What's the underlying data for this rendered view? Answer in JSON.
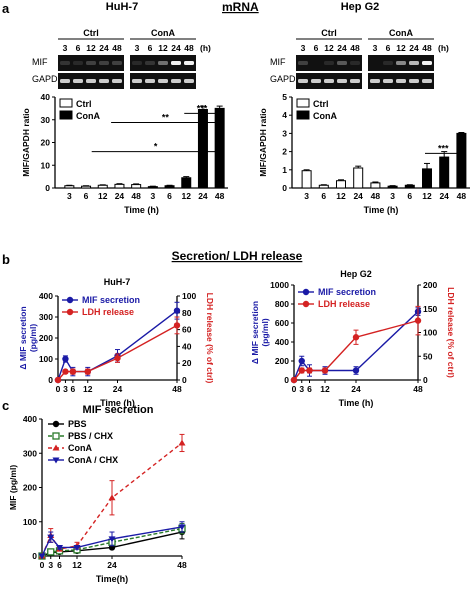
{
  "panel_a": {
    "letter": "a",
    "title": "mRNA",
    "huh7": {
      "name": "HuH-7",
      "gel_group_ctrl": "Ctrl",
      "gel_group_cona": "ConA",
      "gel_times": [
        "3",
        "6",
        "12",
        "24",
        "48",
        "3",
        "6",
        "12",
        "24",
        "48"
      ],
      "gel_unit": "(h)",
      "row_mif": "MIF",
      "row_gapdh": "GAPDH"
    },
    "hepg2": {
      "name": "Hep G2",
      "gel_group_ctrl": "Ctrl",
      "gel_group_cona": "ConA",
      "gel_times": [
        "3",
        "6",
        "12",
        "24",
        "48",
        "3",
        "6",
        "12",
        "24",
        "48"
      ],
      "gel_unit": "(h)",
      "row_mif": "MIF",
      "row_gapdh": "GAPDH"
    }
  },
  "panel_b": {
    "letter": "b",
    "title": "Secretion/ LDH release"
  },
  "panel_c": {
    "letter": "c",
    "title": "MIF secretion"
  },
  "chart_data": [
    {
      "id": "huh7_bar",
      "type": "bar",
      "title": "",
      "ylabel": "MIF/GAPDH ratio",
      "xlabel": "Time (h)",
      "ylim": [
        0,
        40
      ],
      "yticks": [
        "0",
        "10",
        "20",
        "30",
        "40"
      ],
      "categories": [
        "3",
        "6",
        "12",
        "24",
        "48"
      ],
      "series": [
        {
          "name": "Ctrl",
          "color": "#ffffff",
          "values": [
            1.0,
            0.8,
            1.2,
            1.6,
            1.5
          ],
          "errors": [
            0.2,
            0.2,
            0.2,
            0.3,
            0.3
          ]
        },
        {
          "name": "ConA",
          "color": "#000000",
          "values": [
            0.6,
            1.0,
            4.5,
            34.5,
            35.0
          ],
          "errors": [
            0.2,
            0.2,
            0.5,
            1.5,
            1.0
          ]
        }
      ],
      "annotations": [
        {
          "label": "*",
          "from_cat": 1,
          "to_cat": 4
        },
        {
          "label": "**",
          "from_cat": 1,
          "to_cat": 4
        },
        {
          "label": "***",
          "from_cat": 2,
          "to_cat": 4
        }
      ]
    },
    {
      "id": "hepg2_bar",
      "type": "bar",
      "title": "",
      "ylabel": "MIF/GAPDH ratio",
      "xlabel": "Time (h)",
      "ylim": [
        0,
        5
      ],
      "yticks": [
        "0",
        "1",
        "2",
        "3",
        "4",
        "5"
      ],
      "categories": [
        "3",
        "6",
        "12",
        "24",
        "48"
      ],
      "series": [
        {
          "name": "Ctrl",
          "color": "#ffffff",
          "values": [
            0.95,
            0.15,
            0.4,
            1.1,
            0.28
          ],
          "errors": [
            0.05,
            0.03,
            0.05,
            0.1,
            0.05
          ]
        },
        {
          "name": "ConA",
          "color": "#000000",
          "values": [
            0.1,
            0.15,
            1.05,
            1.7,
            3.0
          ],
          "errors": [
            0.03,
            0.03,
            0.3,
            0.3,
            0.05
          ]
        }
      ],
      "annotations": [
        {
          "label": "***",
          "from_cat": 2,
          "to_cat": 4
        }
      ]
    },
    {
      "id": "huh7_line",
      "type": "line",
      "title": "HuH-7",
      "xlabel": "Time (h)",
      "ylabel": "Δ MIF secretion (pg/ml)",
      "y2label": "LDH release (% of ctrl)",
      "xticks": [
        "0",
        "3",
        "6",
        "12",
        "24",
        "48"
      ],
      "xlim": [
        0,
        48
      ],
      "ylim": [
        0,
        400
      ],
      "yticks": [
        "0",
        "100",
        "200",
        "300",
        "400"
      ],
      "y2lim": [
        0,
        100
      ],
      "y2ticks": [
        "0",
        "20",
        "40",
        "60",
        "80",
        "100"
      ],
      "series": [
        {
          "name": "MIF secretion",
          "color": "#1a1aa6",
          "axis": "left",
          "x": [
            0,
            3,
            6,
            12,
            24,
            48
          ],
          "y": [
            0,
            100,
            40,
            40,
            115,
            330
          ],
          "err": [
            0,
            15,
            20,
            20,
            30,
            40
          ]
        },
        {
          "name": "LDH release",
          "color": "#d42222",
          "axis": "right",
          "x": [
            0,
            3,
            6,
            12,
            24,
            48
          ],
          "y": [
            0,
            10,
            10,
            10,
            26,
            65
          ],
          "err": [
            0,
            2,
            3,
            3,
            5,
            10
          ]
        }
      ]
    },
    {
      "id": "hepg2_line",
      "type": "line",
      "title": "Hep G2",
      "xlabel": "Time (h)",
      "ylabel": "Δ MIF secretion (pg/ml)",
      "y2label": "LDH release (% of ctrl)",
      "xticks": [
        "0",
        "3",
        "6",
        "12",
        "24",
        "48"
      ],
      "xlim": [
        0,
        48
      ],
      "ylim": [
        0,
        1000
      ],
      "yticks": [
        "0",
        "200",
        "400",
        "600",
        "800",
        "1000"
      ],
      "y2lim": [
        0,
        200
      ],
      "y2ticks": [
        "0",
        "50",
        "100",
        "150",
        "200"
      ],
      "series": [
        {
          "name": "MIF secretion",
          "color": "#1a1aa6",
          "axis": "left",
          "x": [
            0,
            3,
            6,
            12,
            24,
            48
          ],
          "y": [
            0,
            200,
            100,
            100,
            100,
            720
          ],
          "err": [
            0,
            50,
            60,
            40,
            40,
            40
          ]
        },
        {
          "name": "LDH release",
          "color": "#d42222",
          "axis": "right",
          "x": [
            0,
            3,
            6,
            12,
            24,
            48
          ],
          "y": [
            0,
            20,
            20,
            20,
            90,
            125
          ],
          "err": [
            0,
            5,
            5,
            5,
            15,
            30
          ]
        }
      ]
    },
    {
      "id": "mif_secretion",
      "type": "line",
      "title": "MIF secretion",
      "xlabel": "Time(h)",
      "ylabel": "MIF (pg/ml)",
      "xticks": [
        "0",
        "3",
        "6",
        "12",
        "24",
        "48"
      ],
      "xlim": [
        0,
        48
      ],
      "ylim": [
        0,
        400
      ],
      "yticks": [
        "0",
        "100",
        "200",
        "300",
        "400"
      ],
      "series": [
        {
          "name": "PBS",
          "color": "#000000",
          "marker": "circle",
          "dash": "",
          "x": [
            0,
            3,
            6,
            12,
            24,
            48
          ],
          "y": [
            0,
            10,
            12,
            15,
            25,
            70
          ],
          "err": [
            0,
            3,
            3,
            5,
            5,
            20
          ]
        },
        {
          "name": "PBS / CHX",
          "color": "#2a7a2a",
          "marker": "square-open",
          "dash": "4,2",
          "x": [
            0,
            3,
            6,
            12,
            24,
            48
          ],
          "y": [
            0,
            12,
            15,
            18,
            40,
            80
          ],
          "err": [
            0,
            3,
            3,
            5,
            8,
            15
          ]
        },
        {
          "name": "ConA",
          "color": "#d42222",
          "marker": "triangle",
          "dash": "4,3",
          "x": [
            0,
            3,
            6,
            12,
            24,
            48
          ],
          "y": [
            0,
            60,
            20,
            30,
            170,
            330
          ],
          "err": [
            0,
            20,
            5,
            10,
            50,
            25
          ]
        },
        {
          "name": "ConA / CHX",
          "color": "#1a1aa6",
          "marker": "triangle-down",
          "dash": "",
          "x": [
            0,
            3,
            6,
            12,
            24,
            48
          ],
          "y": [
            0,
            55,
            25,
            25,
            50,
            85
          ],
          "err": [
            0,
            15,
            5,
            5,
            20,
            15
          ]
        }
      ]
    }
  ]
}
